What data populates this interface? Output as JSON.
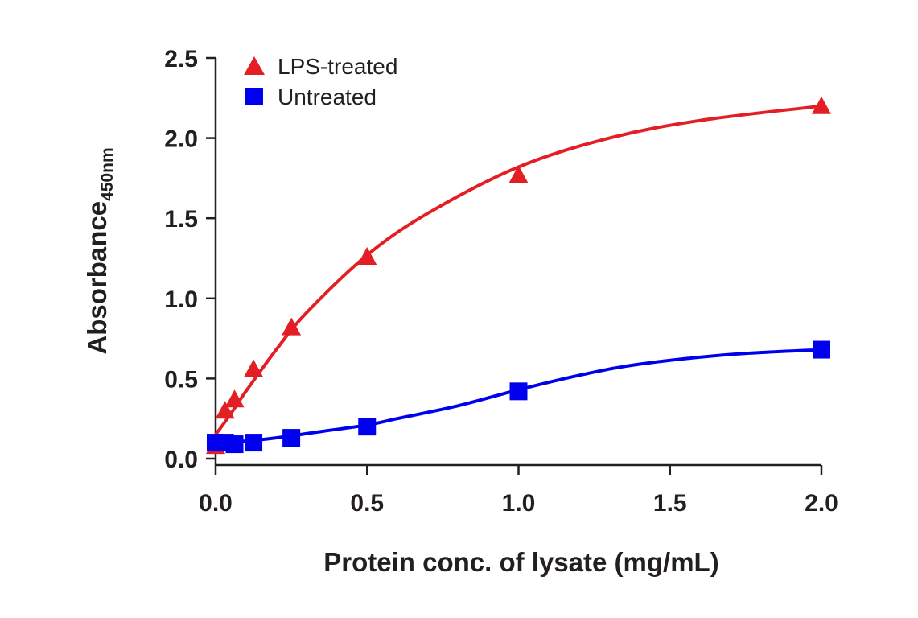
{
  "chart_data": {
    "type": "line",
    "xlabel": "Protein conc. of lysate (mg/mL)",
    "ylabel": "Absorbance",
    "ylabel_subscript": "450nm",
    "xlim": [
      0,
      2.0
    ],
    "ylim": [
      0,
      2.5
    ],
    "x_ticks": [
      "0.0",
      "0.5",
      "1.0",
      "1.5",
      "2.0"
    ],
    "y_ticks": [
      "0.0",
      "0.5",
      "1.0",
      "1.5",
      "2.0",
      "2.5"
    ],
    "grid": false,
    "legend_position": "top-left",
    "series": [
      {
        "name": "LPS-treated",
        "marker": "triangle",
        "color": "#e31e24",
        "points": [
          {
            "x": 0.0,
            "y": 0.08
          },
          {
            "x": 0.031,
            "y": 0.3
          },
          {
            "x": 0.0625,
            "y": 0.37
          },
          {
            "x": 0.125,
            "y": 0.56
          },
          {
            "x": 0.25,
            "y": 0.82
          },
          {
            "x": 0.5,
            "y": 1.26
          },
          {
            "x": 1.0,
            "y": 1.77
          },
          {
            "x": 2.0,
            "y": 2.2
          }
        ],
        "curve": [
          {
            "x": 0.0,
            "y": 0.15
          },
          {
            "x": 0.05,
            "y": 0.28
          },
          {
            "x": 0.1,
            "y": 0.42
          },
          {
            "x": 0.2,
            "y": 0.68
          },
          {
            "x": 0.3,
            "y": 0.91
          },
          {
            "x": 0.5,
            "y": 1.27
          },
          {
            "x": 0.7,
            "y": 1.53
          },
          {
            "x": 1.0,
            "y": 1.82
          },
          {
            "x": 1.3,
            "y": 2.0
          },
          {
            "x": 1.6,
            "y": 2.11
          },
          {
            "x": 2.0,
            "y": 2.2
          }
        ]
      },
      {
        "name": "Untreated",
        "marker": "square",
        "color": "#0000ee",
        "points": [
          {
            "x": 0.0,
            "y": 0.1
          },
          {
            "x": 0.031,
            "y": 0.1
          },
          {
            "x": 0.0625,
            "y": 0.09
          },
          {
            "x": 0.125,
            "y": 0.1
          },
          {
            "x": 0.25,
            "y": 0.13
          },
          {
            "x": 0.5,
            "y": 0.2
          },
          {
            "x": 1.0,
            "y": 0.42
          },
          {
            "x": 2.0,
            "y": 0.68
          }
        ],
        "curve": [
          {
            "x": 0.0,
            "y": 0.1
          },
          {
            "x": 0.1,
            "y": 0.11
          },
          {
            "x": 0.2,
            "y": 0.13
          },
          {
            "x": 0.35,
            "y": 0.17
          },
          {
            "x": 0.5,
            "y": 0.21
          },
          {
            "x": 0.6,
            "y": 0.25
          },
          {
            "x": 0.8,
            "y": 0.33
          },
          {
            "x": 1.0,
            "y": 0.43
          },
          {
            "x": 1.2,
            "y": 0.52
          },
          {
            "x": 1.4,
            "y": 0.59
          },
          {
            "x": 1.7,
            "y": 0.65
          },
          {
            "x": 2.0,
            "y": 0.68
          }
        ]
      }
    ]
  }
}
